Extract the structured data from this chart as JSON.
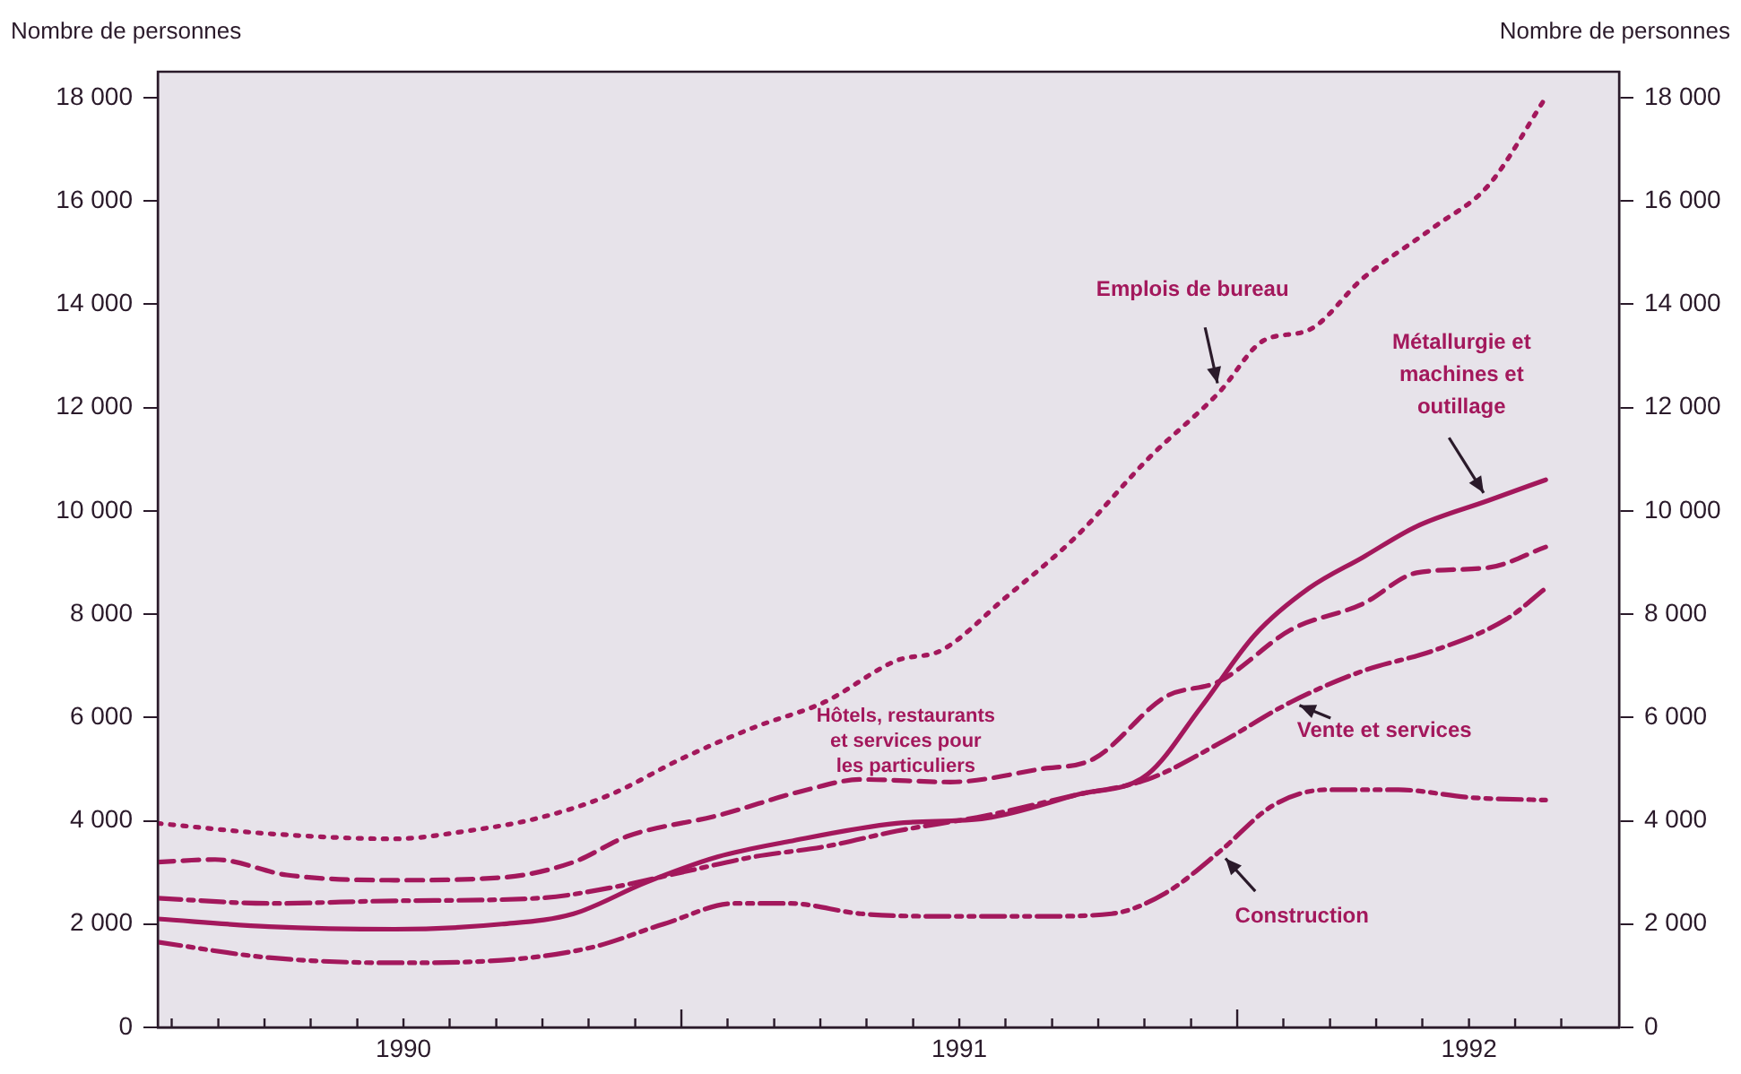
{
  "chart_data": {
    "type": "line",
    "ylabel": "Nombre de personnes",
    "y2label": "Nombre de personnes",
    "xlim": [
      1990.058,
      1992.687
    ],
    "ylim": [
      0,
      18500
    ],
    "y2lim": [
      0,
      18500
    ],
    "xticks": [
      {
        "value": 1990.083,
        "label": null
      },
      {
        "value": 1990.167,
        "label": null
      },
      {
        "value": 1990.25,
        "label": null
      },
      {
        "value": 1990.333,
        "label": null
      },
      {
        "value": 1990.417,
        "label": null
      },
      {
        "value": 1990.5,
        "label": "1990"
      },
      {
        "value": 1990.583,
        "label": null
      },
      {
        "value": 1990.667,
        "label": null
      },
      {
        "value": 1990.75,
        "label": null
      },
      {
        "value": 1990.833,
        "label": null
      },
      {
        "value": 1990.917,
        "label": null
      },
      {
        "value": 1991,
        "label": null
      },
      {
        "value": 1991.083,
        "label": null
      },
      {
        "value": 1991.167,
        "label": null
      },
      {
        "value": 1991.25,
        "label": null
      },
      {
        "value": 1991.333,
        "label": null
      },
      {
        "value": 1991.417,
        "label": null
      },
      {
        "value": 1991.5,
        "label": "1991"
      },
      {
        "value": 1991.583,
        "label": null
      },
      {
        "value": 1991.667,
        "label": null
      },
      {
        "value": 1991.75,
        "label": null
      },
      {
        "value": 1991.833,
        "label": null
      },
      {
        "value": 1991.917,
        "label": null
      },
      {
        "value": 1992,
        "label": null
      },
      {
        "value": 1992.083,
        "label": null
      },
      {
        "value": 1992.167,
        "label": null
      },
      {
        "value": 1992.25,
        "label": null
      },
      {
        "value": 1992.333,
        "label": null
      },
      {
        "value": 1992.417,
        "label": "1992"
      },
      {
        "value": 1992.5,
        "label": null
      },
      {
        "value": 1992.583,
        "label": null
      }
    ],
    "yticks": [
      0,
      {
        "value": 2000,
        "label": "2 000"
      },
      {
        "value": 4000,
        "label": "4 000"
      },
      {
        "value": 6000,
        "label": "6 000"
      },
      {
        "value": 8000,
        "label": "8 000"
      },
      {
        "value": 10000,
        "label": "10 000"
      },
      {
        "value": 12000,
        "label": "12 000"
      },
      {
        "value": 14000,
        "label": "14 000"
      },
      {
        "value": 16000,
        "label": "16 000"
      },
      {
        "value": 18000,
        "label": "18 000"
      }
    ],
    "y2ticks": [
      0,
      {
        "value": 2000,
        "label": "2 000"
      },
      {
        "value": 4000,
        "label": "4 000"
      },
      {
        "value": 6000,
        "label": "6 000"
      },
      {
        "value": 8000,
        "label": "8 000"
      },
      {
        "value": 10000,
        "label": "10 000"
      },
      {
        "value": 12000,
        "label": "12 000"
      },
      {
        "value": 14000,
        "label": "14 000"
      },
      {
        "value": 16000,
        "label": "16 000"
      },
      {
        "value": 18000,
        "label": "18 000"
      }
    ],
    "grid": false,
    "legend": false,
    "marker": "none",
    "series": [
      {
        "name": "Emplois de bureau",
        "color": "#a3185c",
        "line_style": "dotted",
        "x": [
          1990.058,
          1990.258,
          1990.484,
          1990.613,
          1990.742,
          1990.871,
          1991,
          1991.129,
          1991.258,
          1991.387,
          1991.468,
          1991.581,
          1991.71,
          1991.839,
          1991.968,
          1992.048,
          1992.129,
          1992.226,
          1992.355,
          1992.452,
          1992.555
        ],
        "values": [
          3950,
          3750,
          3650,
          3800,
          4050,
          4500,
          5200,
          5800,
          6300,
          7100,
          7300,
          8300,
          9500,
          11000,
          12300,
          13300,
          13500,
          14500,
          15500,
          16300,
          18000
        ]
      },
      {
        "name": "Hôtels, restaurants et services pour les particuliers",
        "color": "#a3185c",
        "line_style": "dashed",
        "x": [
          1990.058,
          1990.161,
          1990.29,
          1990.484,
          1990.677,
          1990.806,
          1990.903,
          1991.065,
          1991.226,
          1991.323,
          1991.484,
          1991.645,
          1991.742,
          1991.871,
          1991.968,
          1992.097,
          1992.226,
          1992.323,
          1992.452,
          1992.555
        ],
        "values": [
          3200,
          3250,
          2950,
          2850,
          2900,
          3200,
          3700,
          4100,
          4600,
          4800,
          4750,
          5000,
          5200,
          6400,
          6700,
          7700,
          8200,
          8800,
          8900,
          9300
        ]
      },
      {
        "name": "Métallurgie et machines et outillage",
        "color": "#a3185c",
        "line_style": "solid",
        "x": [
          1990.058,
          1990.258,
          1990.484,
          1990.677,
          1990.806,
          1990.935,
          1991.065,
          1991.194,
          1991.387,
          1991.548,
          1991.71,
          1991.839,
          1991.935,
          1992.032,
          1992.129,
          1992.226,
          1992.323,
          1992.452,
          1992.555
        ],
        "values": [
          2100,
          1950,
          1900,
          2000,
          2200,
          2800,
          3300,
          3600,
          3950,
          4050,
          4500,
          4900,
          6200,
          7600,
          8500,
          9100,
          9700,
          10200,
          10600
        ]
      },
      {
        "name": "Vente et services",
        "color": "#a3185c",
        "line_style": "dashdot",
        "x": [
          1990.058,
          1990.258,
          1990.484,
          1990.742,
          1990.871,
          1991,
          1991.129,
          1991.258,
          1991.387,
          1991.548,
          1991.71,
          1991.839,
          1991.968,
          1992.097,
          1992.226,
          1992.355,
          1992.484,
          1992.555
        ],
        "values": [
          2500,
          2400,
          2450,
          2500,
          2700,
          3000,
          3300,
          3500,
          3800,
          4100,
          4500,
          4800,
          5500,
          6300,
          6900,
          7300,
          7900,
          8500
        ]
      },
      {
        "name": "Construction",
        "color": "#a3185c",
        "line_style": "dashdotdot",
        "x": [
          1990.058,
          1990.258,
          1990.484,
          1990.677,
          1990.839,
          1990.968,
          1991.097,
          1991.194,
          1991.323,
          1991.484,
          1991.645,
          1991.774,
          1991.871,
          1991.968,
          1992.065,
          1992.161,
          1992.29,
          1992.419,
          1992.555
        ],
        "values": [
          1650,
          1350,
          1250,
          1300,
          1550,
          2000,
          2400,
          2400,
          2200,
          2150,
          2150,
          2200,
          2600,
          3400,
          4300,
          4600,
          4600,
          4450,
          4400
        ]
      }
    ]
  }
}
